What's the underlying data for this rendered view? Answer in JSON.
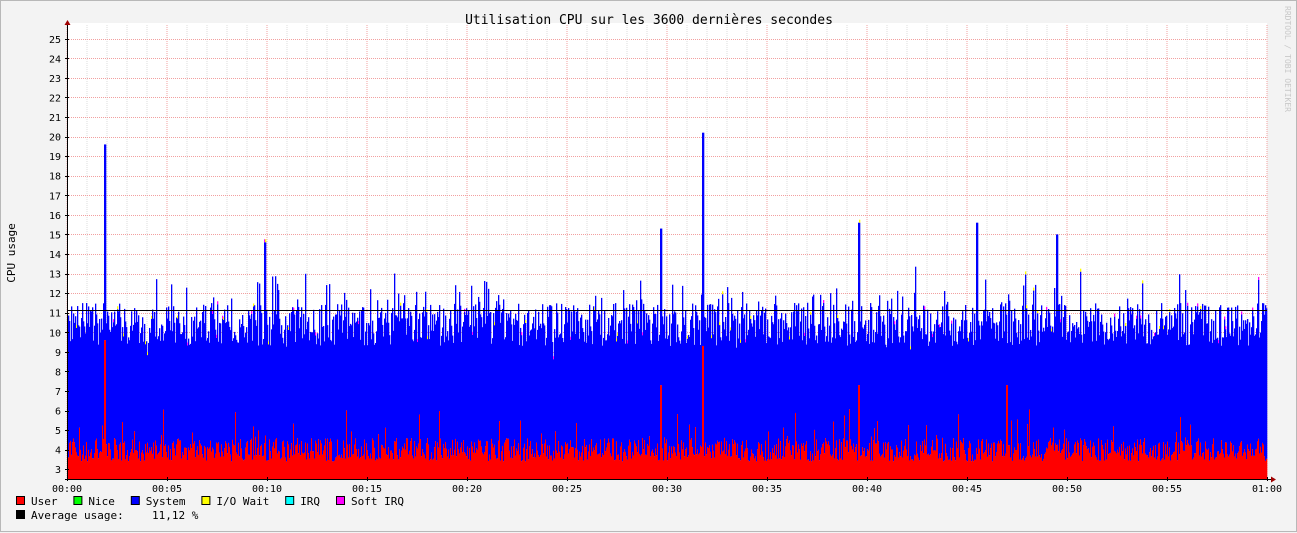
{
  "chart_data": {
    "type": "area",
    "title": "Utilisation CPU sur les 3600 dernières secondes",
    "xlabel": "",
    "ylabel": "CPU usage",
    "watermark": "RRDTOOL / TOBI OETIKER",
    "x_ticks": [
      "00:00",
      "00:05",
      "00:10",
      "00:15",
      "00:20",
      "00:25",
      "00:30",
      "00:35",
      "00:40",
      "00:45",
      "00:50",
      "00:55",
      "01:00"
    ],
    "y_ticks": [
      3,
      4,
      5,
      6,
      7,
      8,
      9,
      10,
      11,
      12,
      13,
      14,
      15,
      16,
      17,
      18,
      19,
      20,
      21,
      22,
      23,
      24,
      25
    ],
    "xlim": [
      0,
      60
    ],
    "ylim": [
      2.5,
      25.5
    ],
    "grid": true,
    "stacked": true,
    "series": [
      {
        "name": "User",
        "color": "#ff0000",
        "typical": [
          3.4,
          4.6
        ],
        "spikes": [
          [
            1.9,
            9.6
          ],
          [
            29.7,
            7.3
          ],
          [
            31.8,
            9.3
          ],
          [
            39.6,
            7.3
          ],
          [
            47.0,
            7.3
          ]
        ]
      },
      {
        "name": "Nice",
        "color": "#00ff00",
        "typical": [
          0,
          0
        ],
        "spikes": []
      },
      {
        "name": "System",
        "color": "#0000ff",
        "typical": [
          9.3,
          11.5
        ],
        "spikes": [
          [
            1.9,
            19.6
          ],
          [
            9.9,
            14.6
          ],
          [
            29.7,
            15.3
          ],
          [
            31.8,
            20.2
          ],
          [
            39.6,
            15.6
          ],
          [
            45.5,
            15.6
          ],
          [
            49.5,
            15.0
          ]
        ]
      },
      {
        "name": "I/O Wait",
        "color": "#ffff00",
        "typical": [
          0,
          0.3
        ],
        "spikes": []
      },
      {
        "name": "IRQ",
        "color": "#00ffff",
        "typical": [
          0,
          0
        ],
        "spikes": []
      },
      {
        "name": "Soft IRQ",
        "color": "#ff00ff",
        "typical": [
          0,
          0.3
        ],
        "spikes": []
      }
    ],
    "average": {
      "label": "Average usage:",
      "value": "11,12 %",
      "line_value": 11.12,
      "color": "#000000"
    }
  }
}
